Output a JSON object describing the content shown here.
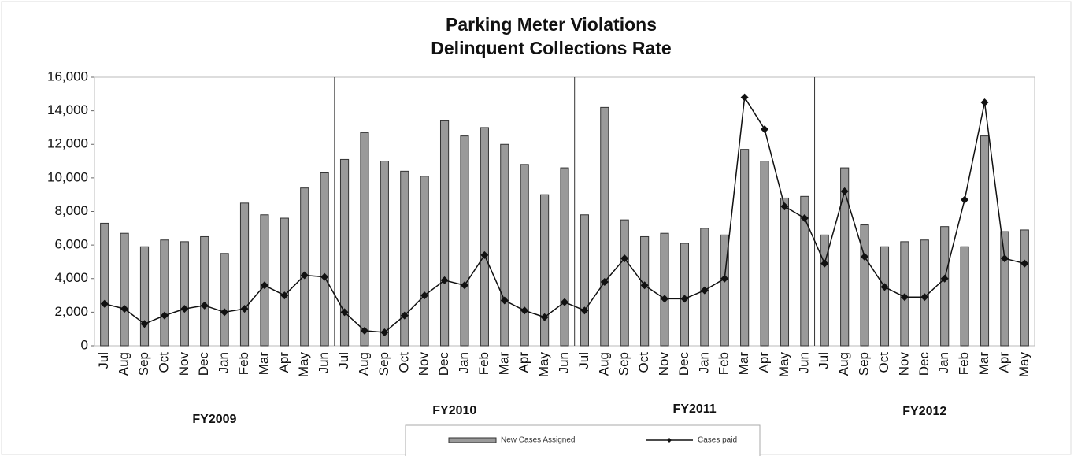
{
  "chart_data": {
    "type": "bar-line",
    "title": [
      "Parking Meter Violations",
      "Delinquent Collections Rate"
    ],
    "categories": [
      "Jul",
      "Aug",
      "Sep",
      "Oct",
      "Nov",
      "Dec",
      "Jan",
      "Feb",
      "Mar",
      "Apr",
      "May",
      "Jun",
      "Jul",
      "Aug",
      "Sep",
      "Oct",
      "Nov",
      "Dec",
      "Jan",
      "Feb",
      "Mar",
      "Apr",
      "May",
      "Jun",
      "Jul",
      "Aug",
      "Sep",
      "Oct",
      "Nov",
      "Dec",
      "Jan",
      "Feb",
      "Mar",
      "Apr",
      "May",
      "Jun",
      "Jul",
      "Aug",
      "Sep",
      "Oct",
      "Nov",
      "Dec",
      "Jan",
      "Feb",
      "Mar",
      "Apr",
      "May"
    ],
    "groups": [
      "FY2009",
      "FY2010",
      "FY2011",
      "FY2012"
    ],
    "series": [
      {
        "name": "New Cases Assigned",
        "kind": "bar",
        "color": "#9a9a9a",
        "values": [
          7300,
          6700,
          5900,
          6300,
          6200,
          6500,
          5500,
          8500,
          7800,
          7600,
          9400,
          10300,
          11100,
          12700,
          11000,
          10400,
          10100,
          13400,
          12500,
          13000,
          12000,
          10800,
          9000,
          10600,
          7800,
          14200,
          7500,
          6500,
          6700,
          6100,
          7000,
          6600,
          11700,
          11000,
          8800,
          8900,
          6600,
          10600,
          7200,
          5900,
          6200,
          6300,
          7100,
          5900,
          12500,
          6800,
          6900
        ]
      },
      {
        "name": "Cases paid",
        "kind": "line",
        "color": "#111111",
        "values": [
          2500,
          2200,
          1300,
          1800,
          2200,
          2400,
          2000,
          2200,
          3600,
          3000,
          4200,
          4100,
          2000,
          900,
          800,
          1800,
          3000,
          3900,
          3600,
          5400,
          2700,
          2100,
          1700,
          2600,
          2100,
          3800,
          5200,
          3600,
          2800,
          2800,
          3300,
          4000,
          14800,
          12900,
          8300,
          7600,
          4900,
          9200,
          5300,
          3500,
          2900,
          2900,
          4000,
          8700,
          14500,
          5200,
          4900
        ]
      }
    ],
    "ylim": [
      0,
      16000
    ],
    "yticks": [
      0,
      {
        "value": 2000,
        "label": "2,000"
      },
      {
        "value": 4000,
        "label": "4,000"
      },
      {
        "value": 6000,
        "label": "6,000"
      },
      {
        "value": 8000,
        "label": "8,000"
      },
      {
        "value": 10000,
        "label": "10,000"
      },
      {
        "value": 12000,
        "label": "12,000"
      },
      {
        "value": 14000,
        "label": "14,000"
      },
      {
        "value": 16000,
        "label": "16,000"
      }
    ],
    "grid": false
  }
}
